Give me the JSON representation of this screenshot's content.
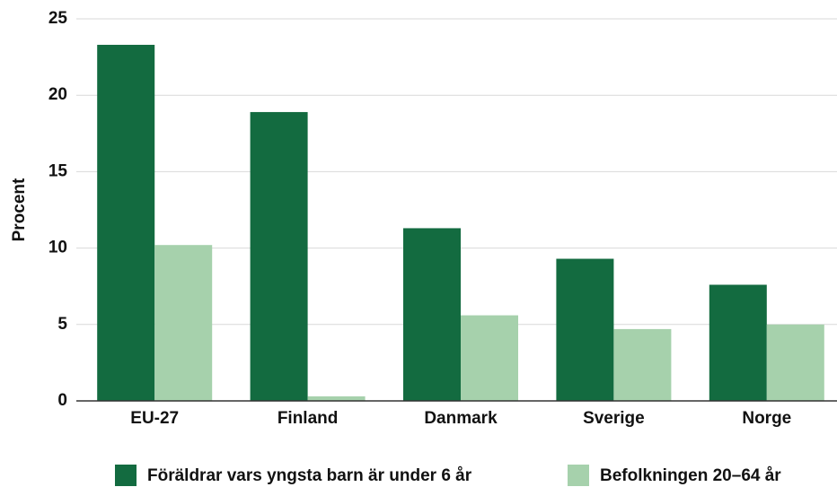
{
  "chart_data": {
    "type": "bar",
    "y_label": "Procent",
    "categories": [
      "EU-27",
      "Finland",
      "Danmark",
      "Sverige",
      "Norge"
    ],
    "series": [
      {
        "name": "Föräldrar vars yngsta barn är under 6 år",
        "color": "#136b40",
        "values": [
          23.3,
          18.9,
          11.3,
          9.3,
          7.6
        ]
      },
      {
        "name": "Befolkningen 20–64 år",
        "color": "#a6d1ac",
        "values": [
          10.2,
          0.3,
          5.6,
          4.7,
          5.0
        ]
      }
    ],
    "ylim": [
      0,
      25
    ],
    "yticks": [
      0,
      5,
      10,
      15,
      20,
      25
    ],
    "grid": true
  }
}
